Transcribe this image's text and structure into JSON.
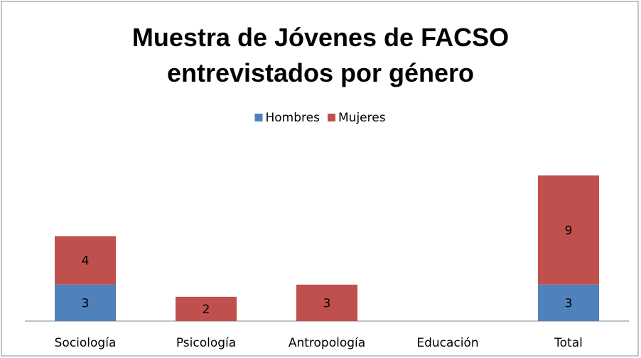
{
  "chart_data": {
    "type": "stacked_bar",
    "title": "Muestra de Jóvenes de FACSO entrevistados por género",
    "categories": [
      "Sociología",
      "Psicología",
      "Antropología",
      "Educación",
      "Total"
    ],
    "series": [
      {
        "name": "Hombres",
        "color": "#4f81bd",
        "values": [
          3,
          0,
          0,
          0,
          3
        ]
      },
      {
        "name": "Mujeres",
        "color": "#c0504d",
        "values": [
          4,
          2,
          3,
          0,
          9
        ]
      }
    ],
    "legend": "top"
  }
}
